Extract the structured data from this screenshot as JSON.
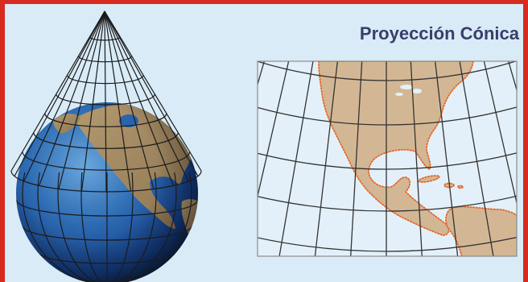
{
  "title": "Proyección Cónica",
  "colors": {
    "frame": "#d62b1e",
    "background": "#d8ebf7",
    "title": "#3b3d6b",
    "ocean": "#2e6cb4",
    "globe_land": "#a68c62",
    "map_land": "#d3b794",
    "coastline": "#e2692b",
    "grid": "#1b1b1b"
  }
}
